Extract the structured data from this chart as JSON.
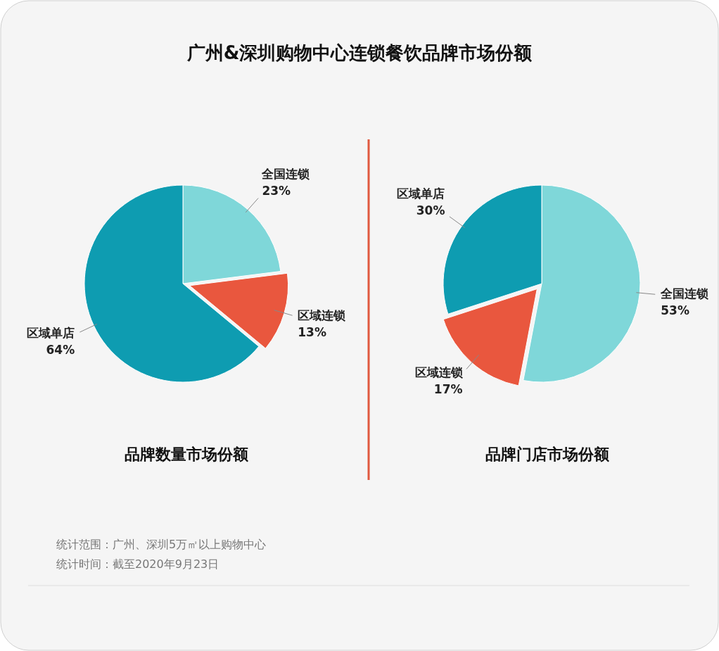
{
  "chart_data": [
    {
      "type": "pie",
      "title": "广州&深圳购物中心连锁餐饮品牌市场份额",
      "subtitle": "品牌数量市场份额",
      "categories": [
        "全国连锁",
        "区域连锁",
        "区域单店"
      ],
      "values": [
        23,
        13,
        64
      ],
      "colors": [
        "#7fd7d9",
        "#e9573e",
        "#0e9cb1"
      ],
      "value_labels": [
        "23%",
        "13%",
        "64%"
      ],
      "annotations": [
        "统计范围：广州、深圳5万㎡以上购物中心",
        "统计时间：截至2020年9月23日"
      ]
    },
    {
      "type": "pie",
      "subtitle": "品牌门店市场份额",
      "categories": [
        "全国连锁",
        "区域连锁",
        "区域单店"
      ],
      "values": [
        53,
        17,
        30
      ],
      "colors": [
        "#7fd7d9",
        "#e9573e",
        "#0e9cb1"
      ],
      "value_labels": [
        "53%",
        "17%",
        "30%"
      ]
    }
  ]
}
